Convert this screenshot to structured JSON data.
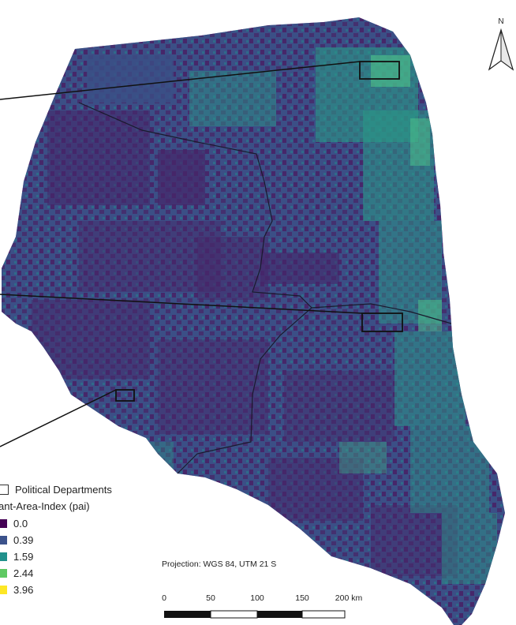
{
  "north_label": "N",
  "legend": {
    "political_departments_label": "Political Departments",
    "pai_title": "ant-Area-Index (pai)",
    "classes": [
      {
        "label": "0.0",
        "color": "#440154"
      },
      {
        "label": "0.39",
        "color": "#3b528b"
      },
      {
        "label": "1.59",
        "color": "#21918c"
      },
      {
        "label": "2.44",
        "color": "#5ec962"
      },
      {
        "label": "3.96",
        "color": "#fde725"
      }
    ]
  },
  "projection": "Projection: WGS 84, UTM 21 S",
  "scale_bar": {
    "ticks": [
      "0",
      "50",
      "100",
      "150",
      "200 km"
    ]
  },
  "colors": {
    "region_base": "#3b4f86",
    "low_patch": "#46276a",
    "green_patch": "#2a9a87",
    "bright_patch": "#4fc48a"
  }
}
